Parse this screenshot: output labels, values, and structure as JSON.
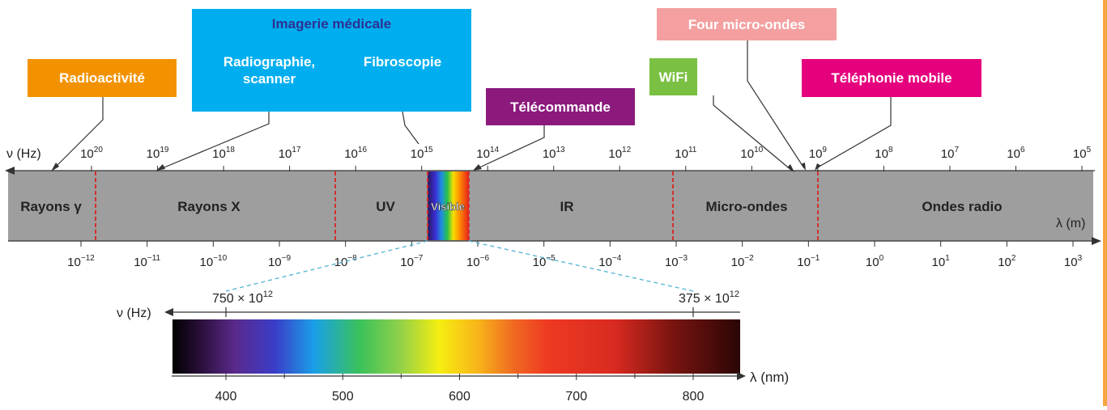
{
  "colors": {
    "band": "#9e9e9e",
    "divider": "#d32f2f",
    "radioactivite": "#f39200",
    "imagerie": "#00aeef",
    "imagerie_title": "#2e3192",
    "telecommande": "#8b1a7c",
    "wifi": "#7ac143",
    "four": "#f4a0a0",
    "telephonie": "#e5007e",
    "zoom_line": "#5bb8d6",
    "right_rule": "#f7a541"
  },
  "freq_axis_label": "ν (Hz)",
  "wavelength_axis_label": "λ (m)",
  "freq_ticks": [
    {
      "base": "10",
      "exp": "20"
    },
    {
      "base": "10",
      "exp": "19"
    },
    {
      "base": "10",
      "exp": "18"
    },
    {
      "base": "10",
      "exp": "17"
    },
    {
      "base": "10",
      "exp": "16"
    },
    {
      "base": "10",
      "exp": "15"
    },
    {
      "base": "10",
      "exp": "14"
    },
    {
      "base": "10",
      "exp": "13"
    },
    {
      "base": "10",
      "exp": "12"
    },
    {
      "base": "10",
      "exp": "11"
    },
    {
      "base": "10",
      "exp": "10"
    },
    {
      "base": "10",
      "exp": "9"
    },
    {
      "base": "10",
      "exp": "8"
    },
    {
      "base": "10",
      "exp": "7"
    },
    {
      "base": "10",
      "exp": "6"
    },
    {
      "base": "10",
      "exp": "5"
    }
  ],
  "wavelength_ticks": [
    {
      "base": "10",
      "exp": "−12"
    },
    {
      "base": "10",
      "exp": "−11"
    },
    {
      "base": "10",
      "exp": "−10"
    },
    {
      "base": "10",
      "exp": "−9"
    },
    {
      "base": "10",
      "exp": "−8"
    },
    {
      "base": "10",
      "exp": "−7"
    },
    {
      "base": "10",
      "exp": "−6"
    },
    {
      "base": "10",
      "exp": "−5"
    },
    {
      "base": "10",
      "exp": "−4"
    },
    {
      "base": "10",
      "exp": "−3"
    },
    {
      "base": "10",
      "exp": "−2"
    },
    {
      "base": "10",
      "exp": "−1"
    },
    {
      "base": "10",
      "exp": "0"
    },
    {
      "base": "10",
      "exp": "1"
    },
    {
      "base": "10",
      "exp": "2"
    },
    {
      "base": "10",
      "exp": "3"
    }
  ],
  "bands": {
    "gamma": "Rayons γ",
    "x": "Rayons X",
    "uv": "UV",
    "visible": "Visible",
    "ir": "IR",
    "micro": "Micro-ondes",
    "radio": "Ondes radio"
  },
  "applications": {
    "radioactivite": "Radioactivité",
    "imagerie_title": "Imagerie médicale",
    "radiographie": "Radiographie,\nscanner",
    "fibroscopie": "Fibroscopie",
    "telecommande": "Télécommande",
    "wifi": "WiFi",
    "four": "Four micro-ondes",
    "telephonie": "Téléphonie mobile"
  },
  "visible_zoom": {
    "freq_label": "ν (Hz)",
    "freq_high": "750 × 10",
    "freq_high_exp": "12",
    "freq_low": "375 × 10",
    "freq_low_exp": "12",
    "wavelength_label": "λ (nm)",
    "ticks": [
      "400",
      "500",
      "600",
      "700",
      "800"
    ]
  }
}
